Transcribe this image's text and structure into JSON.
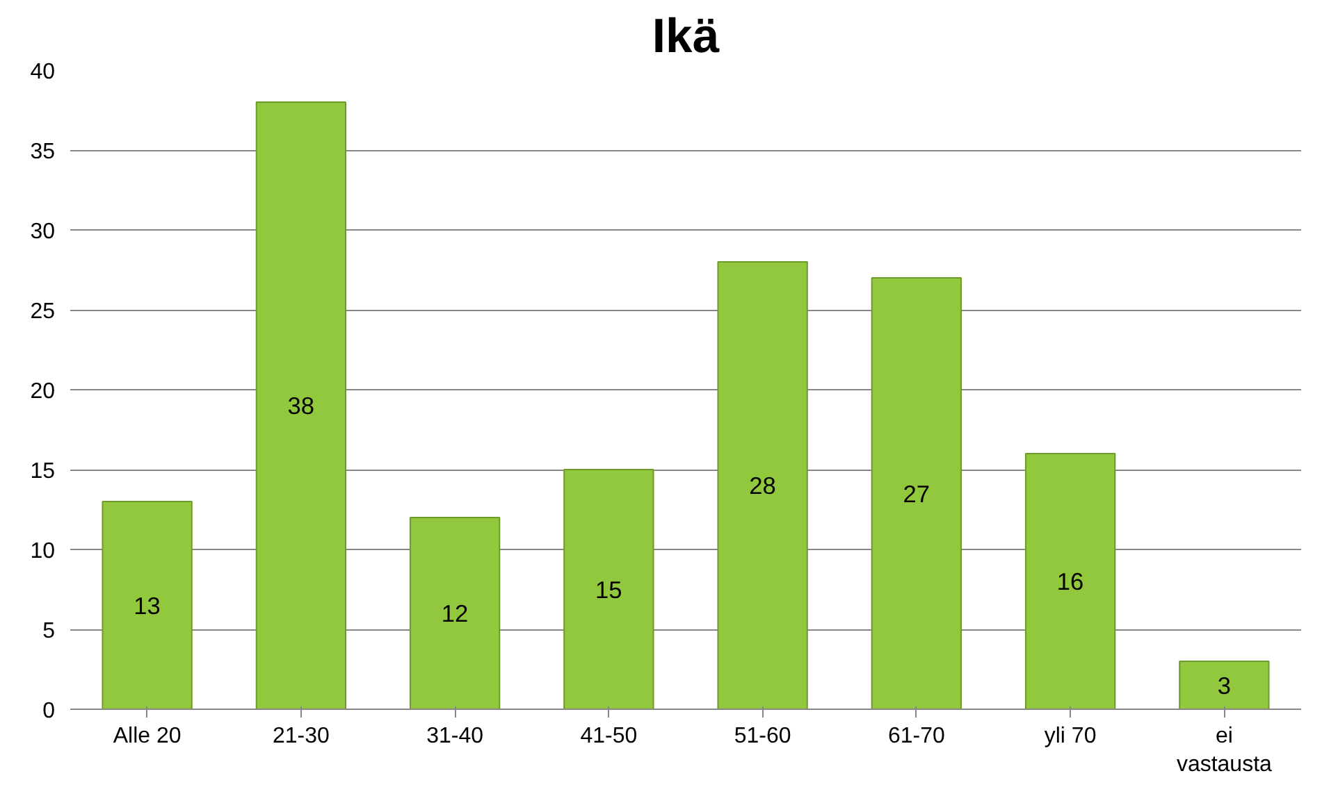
{
  "chart_data": {
    "type": "bar",
    "title": "Ikä",
    "categories": [
      "Alle 20",
      "21-30",
      "31-40",
      "41-50",
      "51-60",
      "61-70",
      "yli 70",
      "ei vastausta"
    ],
    "values": [
      13,
      38,
      12,
      15,
      28,
      27,
      16,
      3
    ],
    "color": "#92c83e",
    "ylim": [
      0,
      40
    ],
    "yticks": [
      0,
      5,
      10,
      15,
      20,
      25,
      30,
      35,
      40
    ],
    "grid": "y",
    "data_labels": true
  }
}
